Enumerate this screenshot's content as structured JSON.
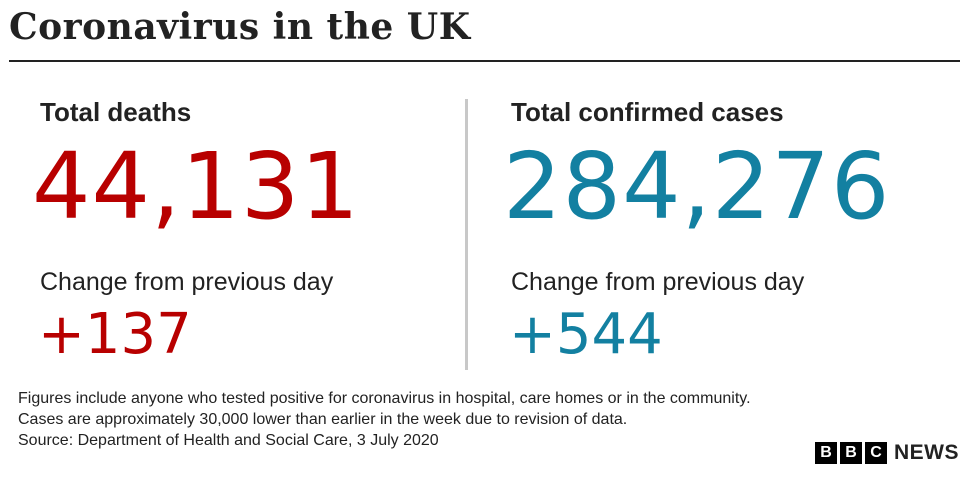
{
  "title": "Coronavirus in the UK",
  "colors": {
    "deaths": "#b80000",
    "cases": "#1380a1",
    "divider": "#c8c8c8",
    "text": "#222222"
  },
  "deaths": {
    "heading": "Total deaths",
    "total": "44,131",
    "change_label": "Change from previous day",
    "change": "+137"
  },
  "cases": {
    "heading": "Total confirmed cases",
    "total": "284,276",
    "change_label": "Change from previous day",
    "change": "+544"
  },
  "footnotes": [
    "Figures include anyone who tested positive for coronavirus in hospital, care homes or in the community.",
    "Cases are approximately 30,000 lower than earlier in the week due to revision of data.",
    "Source: Department of Health and Social Care, 3 July 2020"
  ],
  "logo": {
    "letters": [
      "B",
      "B",
      "C"
    ],
    "word": "NEWS"
  }
}
